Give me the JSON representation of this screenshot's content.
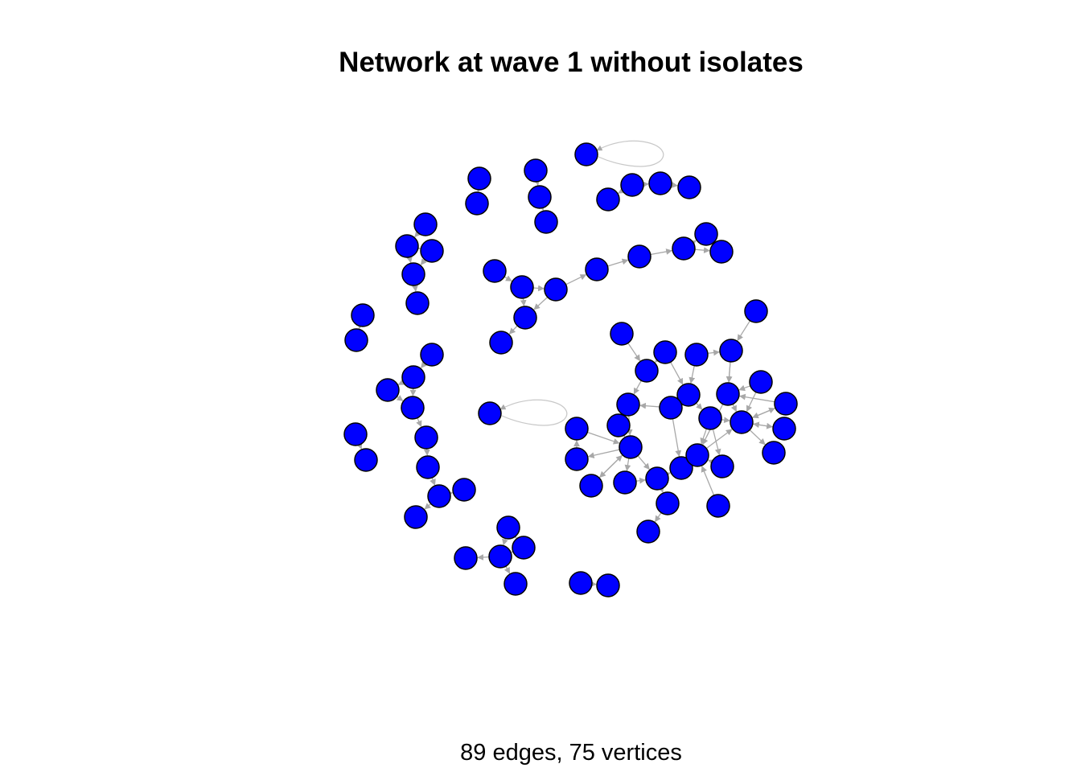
{
  "title": "Network at wave 1 without isolates",
  "subtitle": "89 edges, 75 vertices",
  "colors": {
    "vertex_fill": "#0000ff",
    "vertex_stroke": "#000000",
    "edge": "#a8a8a8",
    "loop_edge": "#c8c8c8",
    "background": "#ffffff"
  }
}
